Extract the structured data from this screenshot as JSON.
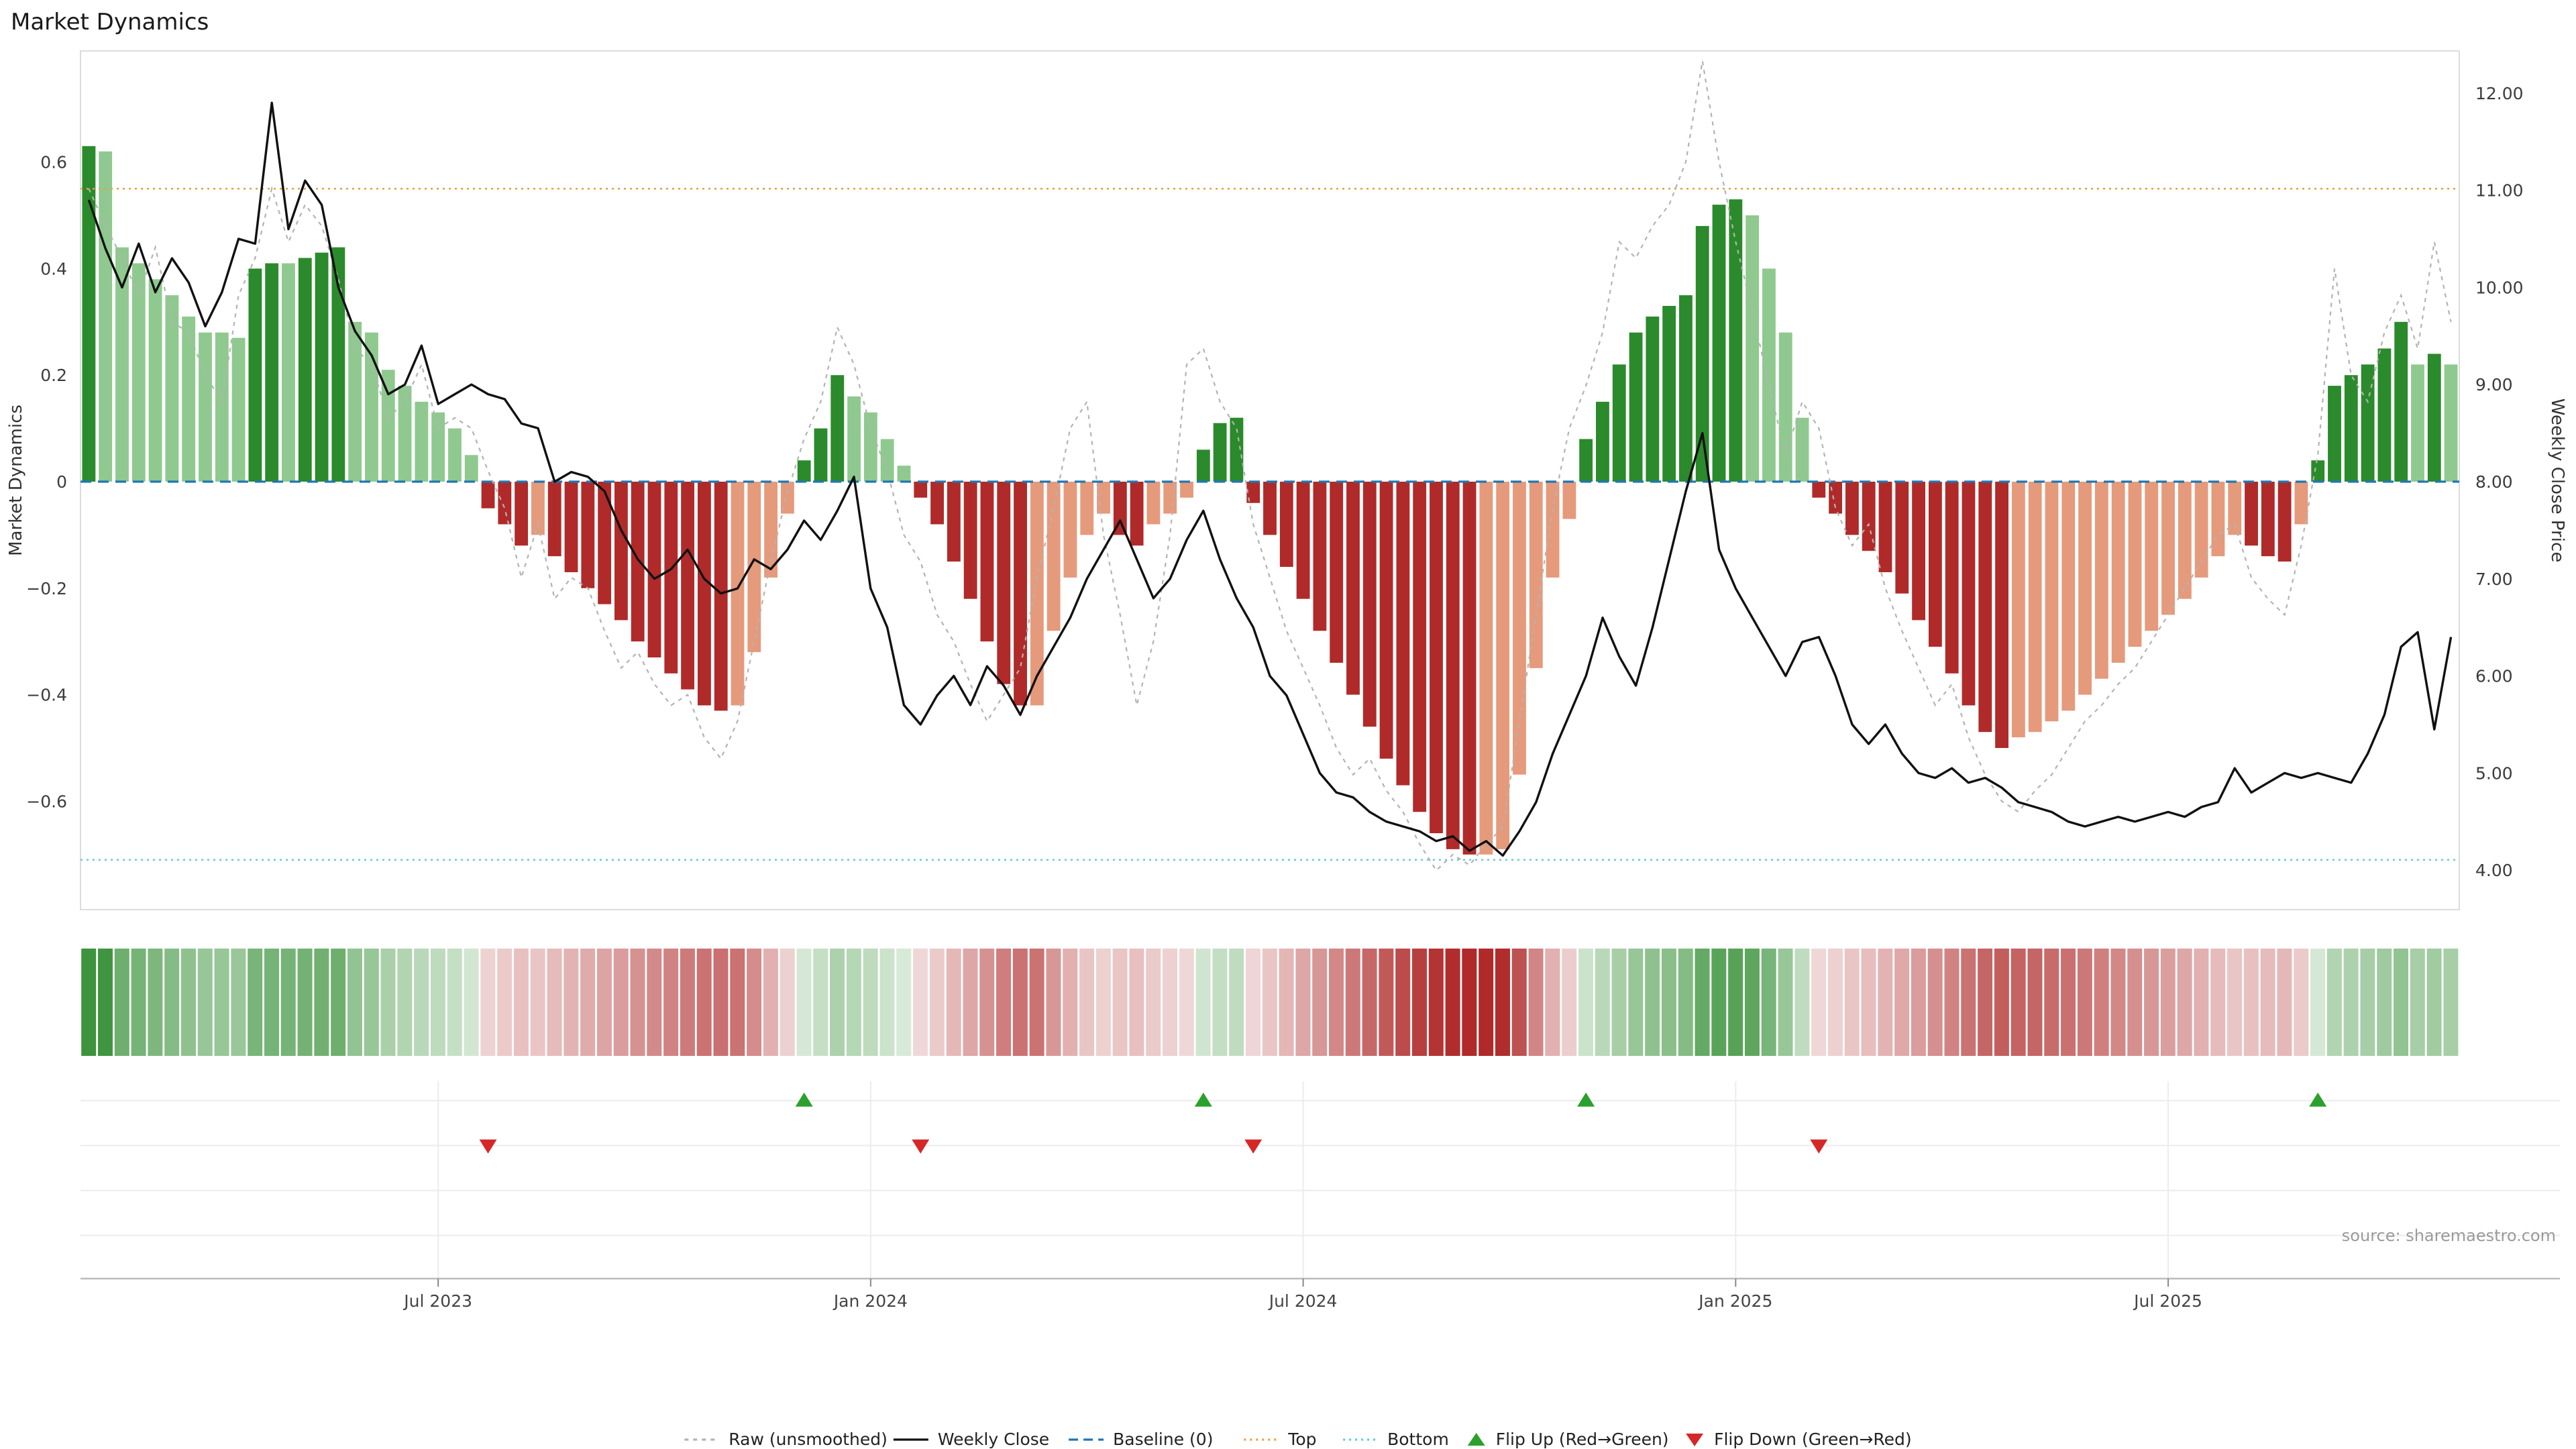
{
  "title": "Market Dynamics",
  "source_note": "source: sharemaestro.com",
  "axes": {
    "left_label": "Market Dynamics",
    "right_label": "Weekly Close Price",
    "left_ticks": [
      {
        "label": "0.6",
        "value": 0.6
      },
      {
        "label": "0.4",
        "value": 0.4
      },
      {
        "label": "0.2",
        "value": 0.2
      },
      {
        "label": "0",
        "value": 0.0
      },
      {
        "label": "−0.2",
        "value": -0.2
      },
      {
        "label": "−0.4",
        "value": -0.4
      },
      {
        "label": "−0.6",
        "value": -0.6
      }
    ],
    "right_ticks": [
      {
        "label": "12.00",
        "value": 12.0
      },
      {
        "label": "11.00",
        "value": 11.0
      },
      {
        "label": "10.00",
        "value": 10.0
      },
      {
        "label": "9.00",
        "value": 9.0
      },
      {
        "label": "8.00",
        "value": 8.0
      },
      {
        "label": "7.00",
        "value": 7.0
      },
      {
        "label": "6.00",
        "value": 6.0
      },
      {
        "label": "5.00",
        "value": 5.0
      },
      {
        "label": "4.00",
        "value": 4.0
      }
    ]
  },
  "colors": {
    "bar_dark_green": "#2b8a2b",
    "bar_light_green": "#8fc98f",
    "bar_dark_red": "#b02a2a",
    "bar_light_red": "#e59a7c",
    "price_line": "#111111",
    "raw_line": "#b3b3b3",
    "baseline_line": "#1f77b4",
    "top_line": "#e8a33d",
    "bottom_line": "#5ecfd6",
    "flip_up": "#2ca02c",
    "flip_down": "#d62728",
    "grid_faint": "#ececec",
    "axis_line": "#bbbbbb",
    "frame": "#dcdcdc"
  },
  "legend": [
    {
      "label": "Raw (unsmoothed)",
      "swatch": "line",
      "color": "#b3b3b3",
      "dash": "3 3.5"
    },
    {
      "label": "Weekly Close",
      "swatch": "line",
      "color": "#111111",
      "dash": ""
    },
    {
      "label": "Baseline (0)",
      "swatch": "line",
      "color": "#1f77b4",
      "dash": "7 4"
    },
    {
      "label": "Top",
      "swatch": "line",
      "color": "#e8a33d",
      "dash": "1.5 3"
    },
    {
      "label": "Bottom",
      "swatch": "line",
      "color": "#5ecfd6",
      "dash": "1.5 3"
    },
    {
      "label": "Flip Up (Red→Green)",
      "swatch": "triangle-up",
      "color": "#2ca02c",
      "dash": ""
    },
    {
      "label": "Flip Down (Green→Red)",
      "swatch": "triangle-down",
      "color": "#d62728",
      "dash": ""
    }
  ],
  "chart_data": {
    "type": "combo",
    "frequency": "weekly",
    "start_date": "2023-02-06",
    "n_weeks": 143,
    "x_ticks": [
      {
        "label": "Jul 2023",
        "week": 21
      },
      {
        "label": "Jan 2024",
        "week": 47
      },
      {
        "label": "Jul 2024",
        "week": 73
      },
      {
        "label": "Jan 2025",
        "week": 99
      },
      {
        "label": "Jul 2025",
        "week": 125
      }
    ],
    "left_axis_range": [
      -0.78,
      0.82
    ],
    "right_axis_range": [
      3.6,
      12.4
    ],
    "reference_lines": {
      "baseline": 0.0,
      "top": 0.55,
      "bottom": -0.71
    },
    "bar_color_rule": "dark shade when |value| is rising vs prior week (momentum strengthening), light shade when falling",
    "heatmap_rule": "one cell per week, green for positive / red for negative, intensity proportional to |value|",
    "flip_up_weeks": [
      43,
      67,
      90,
      134
    ],
    "flip_down_weeks": [
      24,
      50,
      70,
      104
    ],
    "series": [
      {
        "name": "Market Dynamics (smoothed bars)",
        "type": "bar",
        "axis": "left",
        "values": [
          0.63,
          0.62,
          0.44,
          0.41,
          0.38,
          0.35,
          0.31,
          0.28,
          0.28,
          0.27,
          0.4,
          0.41,
          0.41,
          0.42,
          0.43,
          0.44,
          0.3,
          0.28,
          0.21,
          0.18,
          0.15,
          0.13,
          0.1,
          0.05,
          -0.05,
          -0.08,
          -0.12,
          -0.1,
          -0.14,
          -0.17,
          -0.2,
          -0.23,
          -0.26,
          -0.3,
          -0.33,
          -0.36,
          -0.39,
          -0.42,
          -0.43,
          -0.42,
          -0.32,
          -0.18,
          -0.06,
          0.04,
          0.1,
          0.2,
          0.16,
          0.13,
          0.08,
          0.03,
          -0.03,
          -0.08,
          -0.15,
          -0.22,
          -0.3,
          -0.38,
          -0.42,
          -0.42,
          -0.28,
          -0.18,
          -0.1,
          -0.06,
          -0.1,
          -0.12,
          -0.08,
          -0.06,
          -0.03,
          0.06,
          0.11,
          0.12,
          -0.04,
          -0.1,
          -0.16,
          -0.22,
          -0.28,
          -0.34,
          -0.4,
          -0.46,
          -0.52,
          -0.57,
          -0.62,
          -0.66,
          -0.69,
          -0.7,
          -0.7,
          -0.69,
          -0.55,
          -0.35,
          -0.18,
          -0.07,
          0.08,
          0.15,
          0.22,
          0.28,
          0.31,
          0.33,
          0.35,
          0.48,
          0.52,
          0.53,
          0.5,
          0.4,
          0.28,
          0.12,
          -0.03,
          -0.06,
          -0.1,
          -0.13,
          -0.17,
          -0.21,
          -0.26,
          -0.31,
          -0.36,
          -0.42,
          -0.47,
          -0.5,
          -0.48,
          -0.47,
          -0.45,
          -0.43,
          -0.4,
          -0.37,
          -0.34,
          -0.31,
          -0.28,
          -0.25,
          -0.22,
          -0.18,
          -0.14,
          -0.1,
          -0.12,
          -0.14,
          -0.15,
          -0.08,
          0.04,
          0.18,
          0.2,
          0.22,
          0.25,
          0.3,
          0.22,
          0.24,
          0.22
        ]
      },
      {
        "name": "Raw (unsmoothed)",
        "type": "line",
        "axis": "left",
        "values": [
          0.55,
          0.48,
          0.42,
          0.35,
          0.44,
          0.3,
          0.28,
          0.2,
          0.15,
          0.35,
          0.42,
          0.55,
          0.45,
          0.52,
          0.48,
          0.38,
          0.25,
          0.22,
          0.12,
          0.15,
          0.22,
          0.1,
          0.12,
          0.1,
          0.02,
          -0.05,
          -0.18,
          -0.08,
          -0.22,
          -0.18,
          -0.2,
          -0.28,
          -0.35,
          -0.32,
          -0.38,
          -0.42,
          -0.4,
          -0.48,
          -0.52,
          -0.45,
          -0.3,
          -0.15,
          -0.02,
          0.08,
          0.15,
          0.29,
          0.22,
          0.1,
          0.02,
          -0.1,
          -0.15,
          -0.25,
          -0.3,
          -0.38,
          -0.45,
          -0.4,
          -0.35,
          -0.18,
          -0.05,
          0.1,
          0.15,
          -0.1,
          -0.25,
          -0.42,
          -0.3,
          -0.1,
          0.22,
          0.25,
          0.15,
          0.1,
          -0.08,
          -0.18,
          -0.28,
          -0.35,
          -0.42,
          -0.5,
          -0.55,
          -0.52,
          -0.58,
          -0.62,
          -0.68,
          -0.73,
          -0.7,
          -0.72,
          -0.68,
          -0.65,
          -0.45,
          -0.25,
          -0.05,
          0.1,
          0.18,
          0.28,
          0.45,
          0.42,
          0.48,
          0.52,
          0.6,
          0.79,
          0.6,
          0.45,
          0.32,
          0.18,
          0.05,
          0.15,
          0.1,
          -0.05,
          -0.12,
          -0.08,
          -0.2,
          -0.28,
          -0.35,
          -0.42,
          -0.38,
          -0.48,
          -0.55,
          -0.6,
          -0.62,
          -0.58,
          -0.55,
          -0.5,
          -0.45,
          -0.42,
          -0.38,
          -0.35,
          -0.3,
          -0.25,
          -0.2,
          -0.15,
          -0.1,
          -0.08,
          -0.18,
          -0.22,
          -0.25,
          -0.12,
          0.05,
          0.4,
          0.2,
          0.15,
          0.28,
          0.35,
          0.25,
          0.45,
          0.3
        ]
      },
      {
        "name": "Weekly Close",
        "type": "line",
        "axis": "right",
        "values": [
          10.9,
          10.4,
          10.0,
          10.45,
          9.95,
          10.3,
          10.05,
          9.6,
          9.95,
          10.5,
          10.45,
          11.9,
          10.6,
          11.1,
          10.85,
          10.0,
          9.55,
          9.3,
          8.9,
          9.0,
          9.4,
          8.8,
          8.9,
          9.0,
          8.9,
          8.85,
          8.6,
          8.55,
          8.0,
          8.1,
          8.05,
          7.9,
          7.5,
          7.2,
          7.0,
          7.1,
          7.3,
          7.0,
          6.85,
          6.9,
          7.2,
          7.1,
          7.3,
          7.6,
          7.4,
          7.7,
          8.05,
          6.9,
          6.5,
          5.7,
          5.5,
          5.8,
          6.0,
          5.7,
          6.1,
          5.9,
          5.6,
          6.0,
          6.3,
          6.6,
          7.0,
          7.3,
          7.6,
          7.2,
          6.8,
          7.0,
          7.4,
          7.7,
          7.2,
          6.8,
          6.5,
          6.0,
          5.8,
          5.4,
          5.0,
          4.8,
          4.75,
          4.6,
          4.5,
          4.45,
          4.4,
          4.3,
          4.35,
          4.2,
          4.3,
          4.15,
          4.4,
          4.7,
          5.2,
          5.6,
          6.0,
          6.6,
          6.2,
          5.9,
          6.5,
          7.2,
          7.9,
          8.5,
          7.3,
          6.9,
          6.6,
          6.3,
          6.0,
          6.35,
          6.4,
          6.0,
          5.5,
          5.3,
          5.5,
          5.2,
          5.0,
          4.95,
          5.05,
          4.9,
          4.95,
          4.85,
          4.7,
          4.65,
          4.6,
          4.5,
          4.45,
          4.5,
          4.55,
          4.5,
          4.55,
          4.6,
          4.55,
          4.65,
          4.7,
          5.05,
          4.8,
          4.9,
          5.0,
          4.95,
          5.0,
          4.95,
          4.9,
          5.2,
          5.6,
          6.3,
          6.45,
          5.45,
          6.4
        ]
      }
    ]
  }
}
